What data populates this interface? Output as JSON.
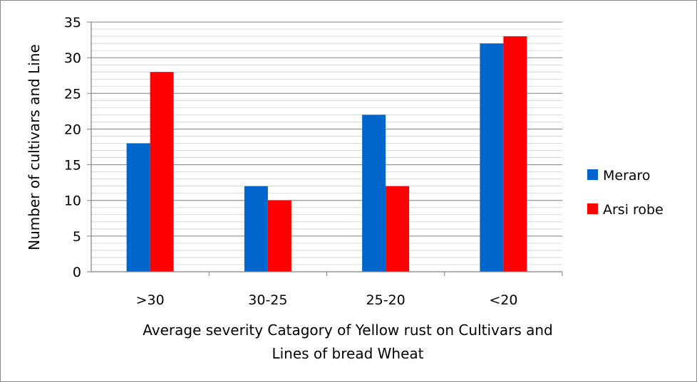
{
  "chart_data": {
    "type": "bar",
    "categories": [
      ">30",
      "30-25",
      "25-20",
      "<20"
    ],
    "series": [
      {
        "name": "Meraro",
        "values": [
          18,
          12,
          22,
          32
        ],
        "color": "#0066cc"
      },
      {
        "name": "Arsi robe",
        "values": [
          28,
          10,
          12,
          33
        ],
        "color": "#ff0000"
      }
    ],
    "title": "",
    "xlabel_lines": [
      "Average severity Catagory of Yellow rust on Cultivars and",
      "Lines of bread Wheat"
    ],
    "ylabel": "Number of cultivars and Line",
    "ylim": [
      0,
      35
    ],
    "yticks": [
      0,
      5,
      10,
      15,
      20,
      25,
      30,
      35
    ],
    "grid": true,
    "legend_position": "right"
  }
}
